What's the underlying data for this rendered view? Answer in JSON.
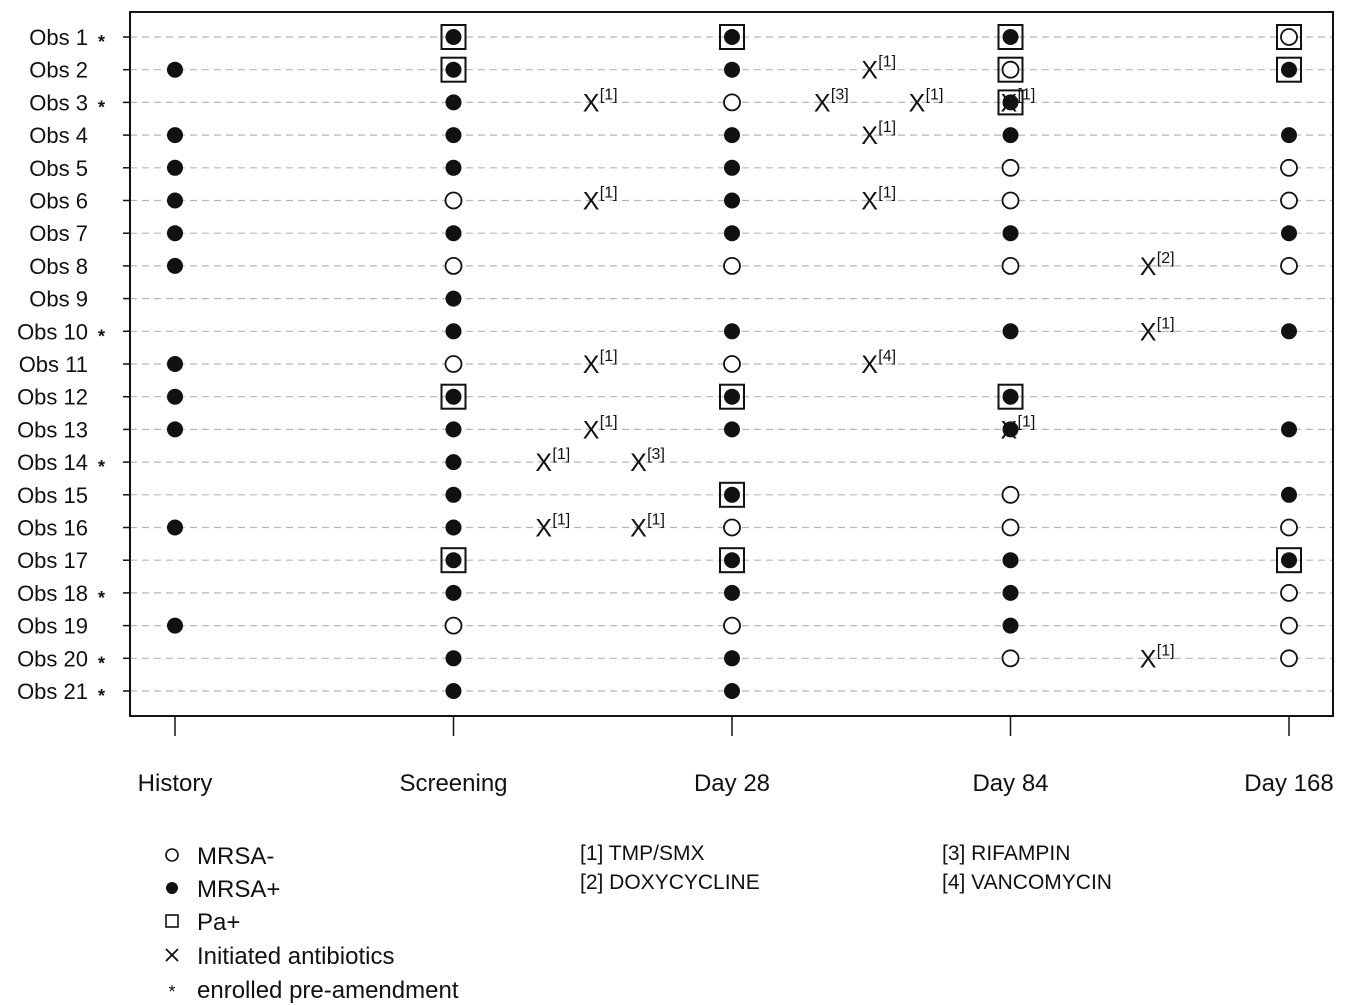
{
  "chart_data": {
    "type": "scatter",
    "title": "",
    "xlabel": "",
    "ylabel": "",
    "x_ticks": [
      "History",
      "Screening",
      "Day 28",
      "Day 84",
      "Day 168"
    ],
    "rows": [
      {
        "label": "Obs 1",
        "pre_amendment": true
      },
      {
        "label": "Obs 2",
        "pre_amendment": false
      },
      {
        "label": "Obs 3",
        "pre_amendment": true
      },
      {
        "label": "Obs 4",
        "pre_amendment": false
      },
      {
        "label": "Obs 5",
        "pre_amendment": false
      },
      {
        "label": "Obs 6",
        "pre_amendment": false
      },
      {
        "label": "Obs 7",
        "pre_amendment": false
      },
      {
        "label": "Obs 8",
        "pre_amendment": false
      },
      {
        "label": "Obs 9",
        "pre_amendment": false
      },
      {
        "label": "Obs 10",
        "pre_amendment": true
      },
      {
        "label": "Obs 11",
        "pre_amendment": false
      },
      {
        "label": "Obs 12",
        "pre_amendment": false
      },
      {
        "label": "Obs 13",
        "pre_amendment": false
      },
      {
        "label": "Obs 14",
        "pre_amendment": true
      },
      {
        "label": "Obs 15",
        "pre_amendment": false
      },
      {
        "label": "Obs 16",
        "pre_amendment": false
      },
      {
        "label": "Obs 17",
        "pre_amendment": false
      },
      {
        "label": "Obs 18",
        "pre_amendment": true
      },
      {
        "label": "Obs 19",
        "pre_amendment": false
      },
      {
        "label": "Obs 20",
        "pre_amendment": true
      },
      {
        "label": "Obs 21",
        "pre_amendment": true
      }
    ],
    "observations": [
      {
        "obs": 1,
        "time": "Screening",
        "mrsa": "+",
        "pa": true
      },
      {
        "obs": 1,
        "time": "Day 28",
        "mrsa": "+",
        "pa": true
      },
      {
        "obs": 1,
        "time": "Day 84",
        "mrsa": "+",
        "pa": true
      },
      {
        "obs": 1,
        "time": "Day 168",
        "mrsa": "-",
        "pa": true
      },
      {
        "obs": 2,
        "time": "History",
        "mrsa": "+",
        "pa": false
      },
      {
        "obs": 2,
        "time": "Screening",
        "mrsa": "+",
        "pa": true
      },
      {
        "obs": 2,
        "time": "Day 28",
        "mrsa": "+",
        "pa": false
      },
      {
        "obs": 2,
        "time": "Day 84",
        "mrsa": "-",
        "pa": true
      },
      {
        "obs": 2,
        "time": "Day 168",
        "mrsa": "+",
        "pa": true
      },
      {
        "obs": 3,
        "time": "Screening",
        "mrsa": "+",
        "pa": false
      },
      {
        "obs": 3,
        "time": "Day 28",
        "mrsa": "-",
        "pa": false
      },
      {
        "obs": 3,
        "time": "Day 84",
        "mrsa": "+",
        "pa": true
      },
      {
        "obs": 4,
        "time": "History",
        "mrsa": "+",
        "pa": false
      },
      {
        "obs": 4,
        "time": "Screening",
        "mrsa": "+",
        "pa": false
      },
      {
        "obs": 4,
        "time": "Day 28",
        "mrsa": "+",
        "pa": false
      },
      {
        "obs": 4,
        "time": "Day 84",
        "mrsa": "+",
        "pa": false
      },
      {
        "obs": 4,
        "time": "Day 168",
        "mrsa": "+",
        "pa": false
      },
      {
        "obs": 5,
        "time": "History",
        "mrsa": "+",
        "pa": false
      },
      {
        "obs": 5,
        "time": "Screening",
        "mrsa": "+",
        "pa": false
      },
      {
        "obs": 5,
        "time": "Day 28",
        "mrsa": "+",
        "pa": false
      },
      {
        "obs": 5,
        "time": "Day 84",
        "mrsa": "-",
        "pa": false
      },
      {
        "obs": 5,
        "time": "Day 168",
        "mrsa": "-",
        "pa": false
      },
      {
        "obs": 6,
        "time": "History",
        "mrsa": "+",
        "pa": false
      },
      {
        "obs": 6,
        "time": "Screening",
        "mrsa": "-",
        "pa": false
      },
      {
        "obs": 6,
        "time": "Day 28",
        "mrsa": "+",
        "pa": false
      },
      {
        "obs": 6,
        "time": "Day 84",
        "mrsa": "-",
        "pa": false
      },
      {
        "obs": 6,
        "time": "Day 168",
        "mrsa": "-",
        "pa": false
      },
      {
        "obs": 7,
        "time": "History",
        "mrsa": "+",
        "pa": false
      },
      {
        "obs": 7,
        "time": "Screening",
        "mrsa": "+",
        "pa": false
      },
      {
        "obs": 7,
        "time": "Day 28",
        "mrsa": "+",
        "pa": false
      },
      {
        "obs": 7,
        "time": "Day 84",
        "mrsa": "+",
        "pa": false
      },
      {
        "obs": 7,
        "time": "Day 168",
        "mrsa": "+",
        "pa": false
      },
      {
        "obs": 8,
        "time": "History",
        "mrsa": "+",
        "pa": false
      },
      {
        "obs": 8,
        "time": "Screening",
        "mrsa": "-",
        "pa": false
      },
      {
        "obs": 8,
        "time": "Day 28",
        "mrsa": "-",
        "pa": false
      },
      {
        "obs": 8,
        "time": "Day 84",
        "mrsa": "-",
        "pa": false
      },
      {
        "obs": 8,
        "time": "Day 168",
        "mrsa": "-",
        "pa": false
      },
      {
        "obs": 9,
        "time": "Screening",
        "mrsa": "+",
        "pa": false
      },
      {
        "obs": 10,
        "time": "Screening",
        "mrsa": "+",
        "pa": false
      },
      {
        "obs": 10,
        "time": "Day 28",
        "mrsa": "+",
        "pa": false
      },
      {
        "obs": 10,
        "time": "Day 84",
        "mrsa": "+",
        "pa": false
      },
      {
        "obs": 10,
        "time": "Day 168",
        "mrsa": "+",
        "pa": false
      },
      {
        "obs": 11,
        "time": "History",
        "mrsa": "+",
        "pa": false
      },
      {
        "obs": 11,
        "time": "Screening",
        "mrsa": "-",
        "pa": false
      },
      {
        "obs": 11,
        "time": "Day 28",
        "mrsa": "-",
        "pa": false
      },
      {
        "obs": 12,
        "time": "History",
        "mrsa": "+",
        "pa": false
      },
      {
        "obs": 12,
        "time": "Screening",
        "mrsa": "+",
        "pa": true
      },
      {
        "obs": 12,
        "time": "Day 28",
        "mrsa": "+",
        "pa": true
      },
      {
        "obs": 12,
        "time": "Day 84",
        "mrsa": "+",
        "pa": true
      },
      {
        "obs": 13,
        "time": "History",
        "mrsa": "+",
        "pa": false
      },
      {
        "obs": 13,
        "time": "Screening",
        "mrsa": "+",
        "pa": false
      },
      {
        "obs": 13,
        "time": "Day 28",
        "mrsa": "+",
        "pa": false
      },
      {
        "obs": 13,
        "time": "Day 84",
        "mrsa": "+",
        "pa": false
      },
      {
        "obs": 13,
        "time": "Day 168",
        "mrsa": "+",
        "pa": false
      },
      {
        "obs": 14,
        "time": "Screening",
        "mrsa": "+",
        "pa": false
      },
      {
        "obs": 15,
        "time": "Screening",
        "mrsa": "+",
        "pa": false
      },
      {
        "obs": 15,
        "time": "Day 28",
        "mrsa": "+",
        "pa": true
      },
      {
        "obs": 15,
        "time": "Day 84",
        "mrsa": "-",
        "pa": false
      },
      {
        "obs": 15,
        "time": "Day 168",
        "mrsa": "+",
        "pa": false
      },
      {
        "obs": 16,
        "time": "History",
        "mrsa": "+",
        "pa": false
      },
      {
        "obs": 16,
        "time": "Screening",
        "mrsa": "+",
        "pa": false
      },
      {
        "obs": 16,
        "time": "Day 28",
        "mrsa": "-",
        "pa": false
      },
      {
        "obs": 16,
        "time": "Day 84",
        "mrsa": "-",
        "pa": false
      },
      {
        "obs": 16,
        "time": "Day 168",
        "mrsa": "-",
        "pa": false
      },
      {
        "obs": 17,
        "time": "Screening",
        "mrsa": "+",
        "pa": true
      },
      {
        "obs": 17,
        "time": "Day 28",
        "mrsa": "+",
        "pa": true
      },
      {
        "obs": 17,
        "time": "Day 84",
        "mrsa": "+",
        "pa": false
      },
      {
        "obs": 17,
        "time": "Day 168",
        "mrsa": "+",
        "pa": true
      },
      {
        "obs": 18,
        "time": "Screening",
        "mrsa": "+",
        "pa": false
      },
      {
        "obs": 18,
        "time": "Day 28",
        "mrsa": "+",
        "pa": false
      },
      {
        "obs": 18,
        "time": "Day 84",
        "mrsa": "+",
        "pa": false
      },
      {
        "obs": 18,
        "time": "Day 168",
        "mrsa": "-",
        "pa": false
      },
      {
        "obs": 19,
        "time": "History",
        "mrsa": "+",
        "pa": false
      },
      {
        "obs": 19,
        "time": "Screening",
        "mrsa": "-",
        "pa": false
      },
      {
        "obs": 19,
        "time": "Day 28",
        "mrsa": "-",
        "pa": false
      },
      {
        "obs": 19,
        "time": "Day 84",
        "mrsa": "+",
        "pa": false
      },
      {
        "obs": 19,
        "time": "Day 168",
        "mrsa": "-",
        "pa": false
      },
      {
        "obs": 20,
        "time": "Screening",
        "mrsa": "+",
        "pa": false
      },
      {
        "obs": 20,
        "time": "Day 28",
        "mrsa": "+",
        "pa": false
      },
      {
        "obs": 20,
        "time": "Day 84",
        "mrsa": "-",
        "pa": false
      },
      {
        "obs": 20,
        "time": "Day 168",
        "mrsa": "-",
        "pa": false
      },
      {
        "obs": 21,
        "time": "Screening",
        "mrsa": "+",
        "pa": false
      },
      {
        "obs": 21,
        "time": "Day 28",
        "mrsa": "+",
        "pa": false
      }
    ],
    "antibiotics": [
      {
        "obs": 2,
        "time_pos": 2.5,
        "code": "[1]"
      },
      {
        "obs": 3,
        "time_pos": 1.5,
        "code": "[1]"
      },
      {
        "obs": 3,
        "time_pos": 2.33,
        "code": "[3]"
      },
      {
        "obs": 3,
        "time_pos": 2.67,
        "code": "[1]"
      },
      {
        "obs": 3,
        "time_pos": 3.0,
        "code": "[1]"
      },
      {
        "obs": 4,
        "time_pos": 2.5,
        "code": "[1]"
      },
      {
        "obs": 6,
        "time_pos": 1.5,
        "code": "[1]"
      },
      {
        "obs": 6,
        "time_pos": 2.5,
        "code": "[1]"
      },
      {
        "obs": 8,
        "time_pos": 3.5,
        "code": "[2]"
      },
      {
        "obs": 10,
        "time_pos": 3.5,
        "code": "[1]"
      },
      {
        "obs": 11,
        "time_pos": 1.5,
        "code": "[1]"
      },
      {
        "obs": 11,
        "time_pos": 2.5,
        "code": "[4]"
      },
      {
        "obs": 13,
        "time_pos": 1.5,
        "code": "[1]"
      },
      {
        "obs": 13,
        "time_pos": 3.0,
        "code": "[1]"
      },
      {
        "obs": 14,
        "time_pos": 1.33,
        "code": "[1]"
      },
      {
        "obs": 14,
        "time_pos": 1.67,
        "code": "[3]"
      },
      {
        "obs": 16,
        "time_pos": 1.33,
        "code": "[1]"
      },
      {
        "obs": 16,
        "time_pos": 1.67,
        "code": "[1]"
      },
      {
        "obs": 20,
        "time_pos": 3.5,
        "code": "[1]"
      }
    ],
    "legend": {
      "placement": "bottom",
      "items": [
        {
          "symbol": "open-circle",
          "label": "MRSA-"
        },
        {
          "symbol": "filled-circle",
          "label": "MRSA+"
        },
        {
          "symbol": "square",
          "label": "Pa+"
        },
        {
          "symbol": "cross",
          "label": "Initiated antibiotics"
        },
        {
          "symbol": "asterisk",
          "label": "enrolled pre-amendment"
        }
      ],
      "codes": [
        {
          "code": "[1]",
          "label": "[1] TMP/SMX"
        },
        {
          "code": "[2]",
          "label": "[2] DOXYCYCLINE"
        },
        {
          "code": "[3]",
          "label": "[3] RIFAMPIN"
        },
        {
          "code": "[4]",
          "label": "[4] VANCOMYCIN"
        }
      ]
    },
    "grid": "horizontal dashed",
    "colors": {
      "ink": "#111111",
      "grid": "#b8b8b8",
      "background": "#ffffff"
    }
  }
}
